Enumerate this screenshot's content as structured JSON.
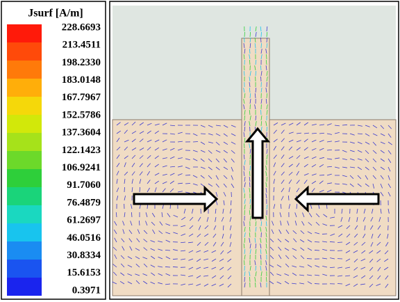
{
  "legend": {
    "title": "Jsurf [A/m]",
    "labels": [
      "228.6693",
      "213.4511",
      "198.2330",
      "183.0148",
      "167.7967",
      "152.5786",
      "137.3604",
      "122.1423",
      "106.9241",
      "91.7060",
      "76.4879",
      "61.2697",
      "46.0516",
      "30.8334",
      "15.6153",
      "0.3971"
    ]
  }
}
